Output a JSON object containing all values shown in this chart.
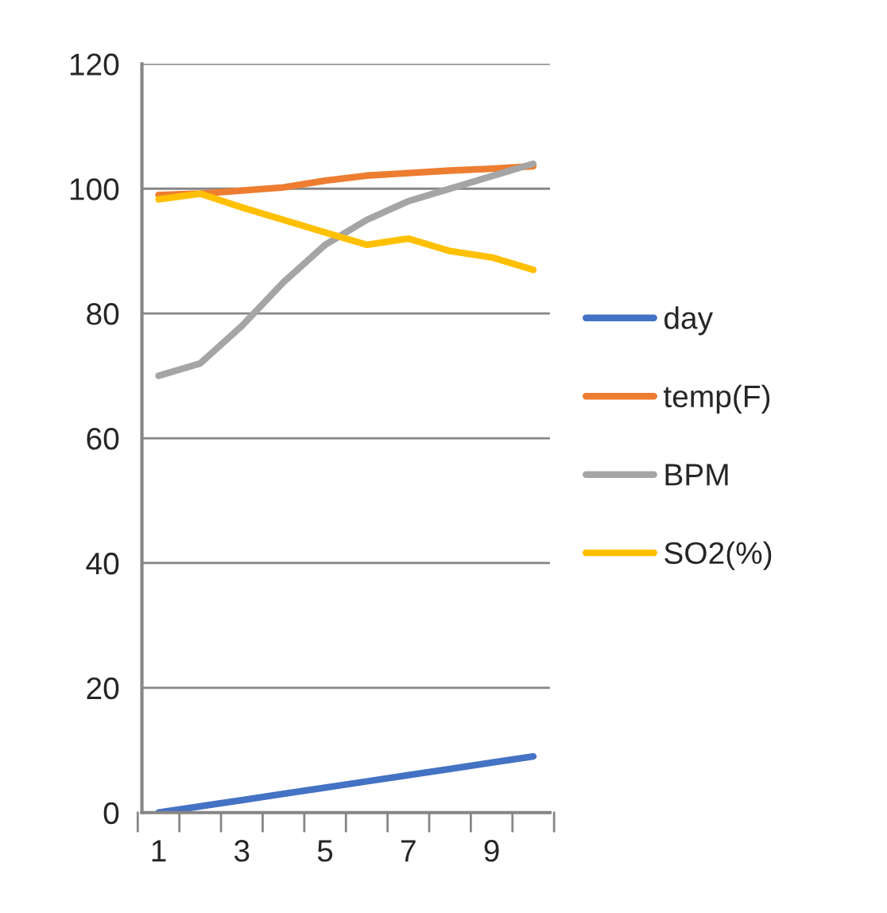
{
  "chart_data": {
    "type": "line",
    "categories": [
      "1",
      null,
      "3",
      null,
      "5",
      null,
      "7",
      null,
      "9",
      null
    ],
    "series": [
      {
        "name": "day",
        "color": "#4472c4",
        "values": [
          0,
          1,
          2,
          3,
          4,
          5,
          6,
          7,
          8,
          9
        ]
      },
      {
        "name": "temp(F)",
        "color": "#ed7d31",
        "values": [
          99,
          99.2,
          99.7,
          100.2,
          101.3,
          102.1,
          102.5,
          102.9,
          103.2,
          103.6
        ]
      },
      {
        "name": "BPM",
        "color": "#a5a5a5",
        "values": [
          70,
          72,
          78,
          85,
          91,
          95,
          98,
          100,
          102,
          104
        ]
      },
      {
        "name": "SO2(%)",
        "color": "#ffc000",
        "values": [
          98.3,
          99.2,
          97,
          95,
          93,
          91,
          92,
          90,
          89,
          87
        ]
      }
    ],
    "ylim": [
      0,
      120
    ],
    "yticks": [
      0,
      20,
      40,
      60,
      80,
      100,
      120
    ],
    "grid": "y",
    "legend": "right",
    "marker": "none",
    "line_style": "solid"
  }
}
